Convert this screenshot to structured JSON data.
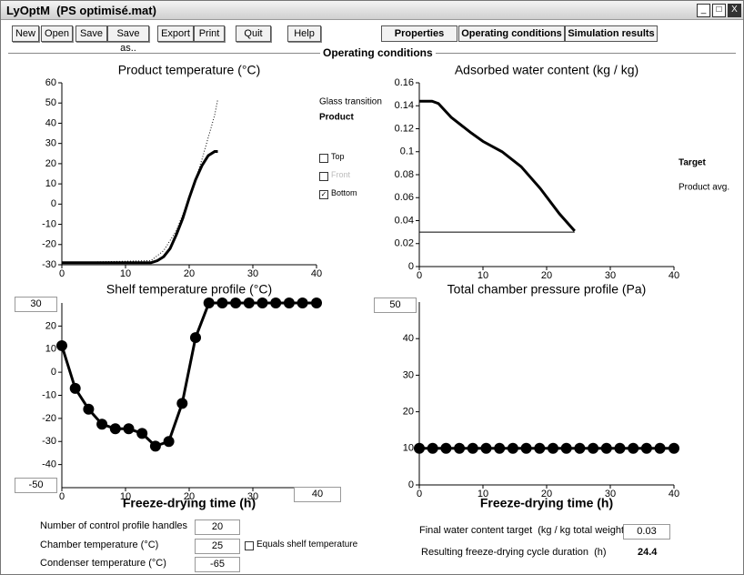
{
  "window": {
    "title": "LyOptM  (PS optimisé.mat)"
  },
  "toolbar": {
    "buttons": [
      "New",
      "Open",
      "Save",
      "Save as..",
      "Export",
      "Print",
      "Quit",
      "Help"
    ]
  },
  "tabs": [
    "Properties",
    "Operating conditions",
    "Simulation results"
  ],
  "section_title": "Operating conditions",
  "chart_data": [
    {
      "type": "line",
      "title": "Product temperature (°C)",
      "xlim": [
        0,
        40
      ],
      "xticks": [
        0,
        10,
        20,
        30,
        40
      ],
      "ylim": [
        -30,
        60
      ],
      "yticks": [
        -30,
        -20,
        -10,
        0,
        10,
        20,
        30,
        40,
        50,
        60
      ],
      "series": [
        {
          "name": "Glass transition",
          "color": "#000000",
          "line_style": "dotted",
          "x": [
            0,
            14,
            16,
            18,
            20,
            22,
            24,
            24.5
          ],
          "values": [
            -29,
            -28,
            -23,
            -13,
            3,
            22,
            44,
            52
          ]
        },
        {
          "name": "Product",
          "color": "#000000",
          "line_style": "solid",
          "x": [
            0,
            5,
            10,
            14,
            15,
            16,
            17,
            18,
            19,
            20,
            21,
            22,
            23,
            24,
            24.5
          ],
          "values": [
            -29,
            -29,
            -29,
            -29,
            -28,
            -26,
            -22,
            -15,
            -7,
            3,
            12,
            19,
            24,
            26,
            26
          ]
        }
      ]
    },
    {
      "type": "line",
      "title": "Adsorbed water content  (kg / kg)",
      "xlim": [
        0,
        40
      ],
      "xticks": [
        0,
        10,
        20,
        30,
        40
      ],
      "ylim": [
        0,
        0.16
      ],
      "yticks": [
        0,
        0.02,
        0.04,
        0.06,
        0.08,
        0.1,
        0.12,
        0.14,
        0.16
      ],
      "series": [
        {
          "name": "Product avg.",
          "color": "#000000",
          "line_style": "solid",
          "x": [
            0,
            2,
            3,
            5,
            8,
            10,
            13,
            16,
            19,
            22,
            24.4
          ],
          "values": [
            0.144,
            0.144,
            0.142,
            0.13,
            0.117,
            0.109,
            0.1,
            0.087,
            0.068,
            0.046,
            0.031
          ]
        },
        {
          "name": "Target",
          "color": "#000000",
          "line_style": "thin",
          "x": [
            0,
            24.4
          ],
          "values": [
            0.03,
            0.03
          ]
        }
      ]
    },
    {
      "type": "line",
      "title": "Shelf temperature profile (°C)",
      "x_label": "Freeze-drying time (h)",
      "xlim": [
        0,
        40
      ],
      "xticks": [
        0,
        10,
        20,
        30
      ],
      "ylim": [
        -50,
        30
      ],
      "yticks": [
        -40,
        -30,
        -20,
        -10,
        0,
        10,
        20
      ],
      "series": [
        {
          "color": "#000000",
          "line_style": "solid",
          "markers": true,
          "x": [
            0,
            2.1,
            4.2,
            6.3,
            8.4,
            10.5,
            12.6,
            14.7,
            16.8,
            18.9,
            21,
            23.1,
            25.2,
            27.3,
            29.4,
            31.5,
            33.6,
            35.7,
            37.8,
            40
          ],
          "values": [
            11.5,
            -7,
            -16,
            -22.5,
            -24.5,
            -24.5,
            -26.5,
            -32,
            -30,
            -13.5,
            15,
            30,
            30,
            30,
            30,
            30,
            30,
            30,
            30,
            30
          ]
        }
      ]
    },
    {
      "type": "line",
      "title": "Total chamber pressure profile (Pa)",
      "x_label": "Freeze-drying time (h)",
      "xlim": [
        0,
        40
      ],
      "xticks": [
        0,
        10,
        20,
        30,
        40
      ],
      "ylim": [
        0,
        50
      ],
      "yticks": [
        0,
        10,
        20,
        30,
        40
      ],
      "series": [
        {
          "color": "#000000",
          "line_style": "solid",
          "markers": true,
          "x": [
            0,
            2.1,
            4.2,
            6.3,
            8.4,
            10.5,
            12.6,
            14.7,
            16.8,
            18.9,
            21,
            23.1,
            25.2,
            27.3,
            29.4,
            31.5,
            33.6,
            35.7,
            37.8,
            40
          ],
          "values": [
            10,
            10,
            10,
            10,
            10,
            10,
            10,
            10,
            10,
            10,
            10,
            10,
            10,
            10,
            10,
            10,
            10,
            10,
            10,
            10
          ]
        }
      ]
    }
  ],
  "checkboxes": [
    {
      "label": "Top",
      "checked": false
    },
    {
      "label": "Front",
      "checked": false
    },
    {
      "label": "Bottom",
      "checked": true
    }
  ],
  "form": {
    "fields": [
      {
        "label": "Number of control profile handles",
        "value": 20
      },
      {
        "label": "Chamber temperature (°C)",
        "value": 25
      },
      {
        "label": "Condenser temperature (°C)",
        "value": -65
      }
    ],
    "equals_shelf": {
      "label": "Equals shelf temperature",
      "checked": false
    },
    "target": {
      "label": "Final water content target  (kg / kg total weight)",
      "value": 0.03
    },
    "duration": {
      "label": "Resulting freeze-drying cycle duration  (h)",
      "value": 24.4
    }
  }
}
